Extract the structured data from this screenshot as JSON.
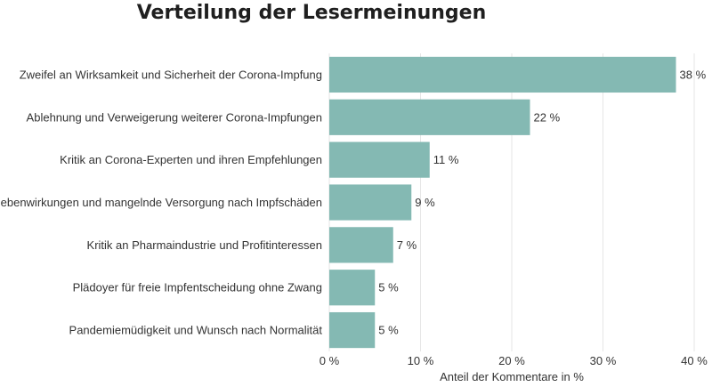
{
  "chart_data": {
    "type": "bar",
    "orientation": "horizontal",
    "title": "Verteilung der Lesermeinungen",
    "xlabel": "Anteil der Kommentare in %",
    "ylabel": "",
    "categories": [
      "Zweifel an Wirksamkeit und Sicherheit der Corona-Impfung",
      "Ablehnung und Verweigerung weiterer Corona-Impfungen",
      "Kritik an Corona-Experten und ihren Empfehlungen",
      "Nebenwirkungen und mangelnde Versorgung nach Impfschäden",
      "Kritik an Pharmaindustrie und Profitinteressen",
      "Plädoyer für freie Impfentscheidung ohne Zwang",
      "Pandemiemüdigkeit und Wunsch nach Normalität"
    ],
    "values": [
      38,
      22,
      11,
      9,
      7,
      5,
      5
    ],
    "value_labels": [
      "38 %",
      "22 %",
      "11 %",
      "9 %",
      "7 %",
      "5 %",
      "5 %"
    ],
    "xlim": [
      0,
      40
    ],
    "xticks": [
      0,
      10,
      20,
      30,
      40
    ],
    "xtick_labels": [
      "0 %",
      "10 %",
      "20 %",
      "30 %",
      "40 %"
    ],
    "grid": true,
    "bar_color": "#84b9b3"
  }
}
